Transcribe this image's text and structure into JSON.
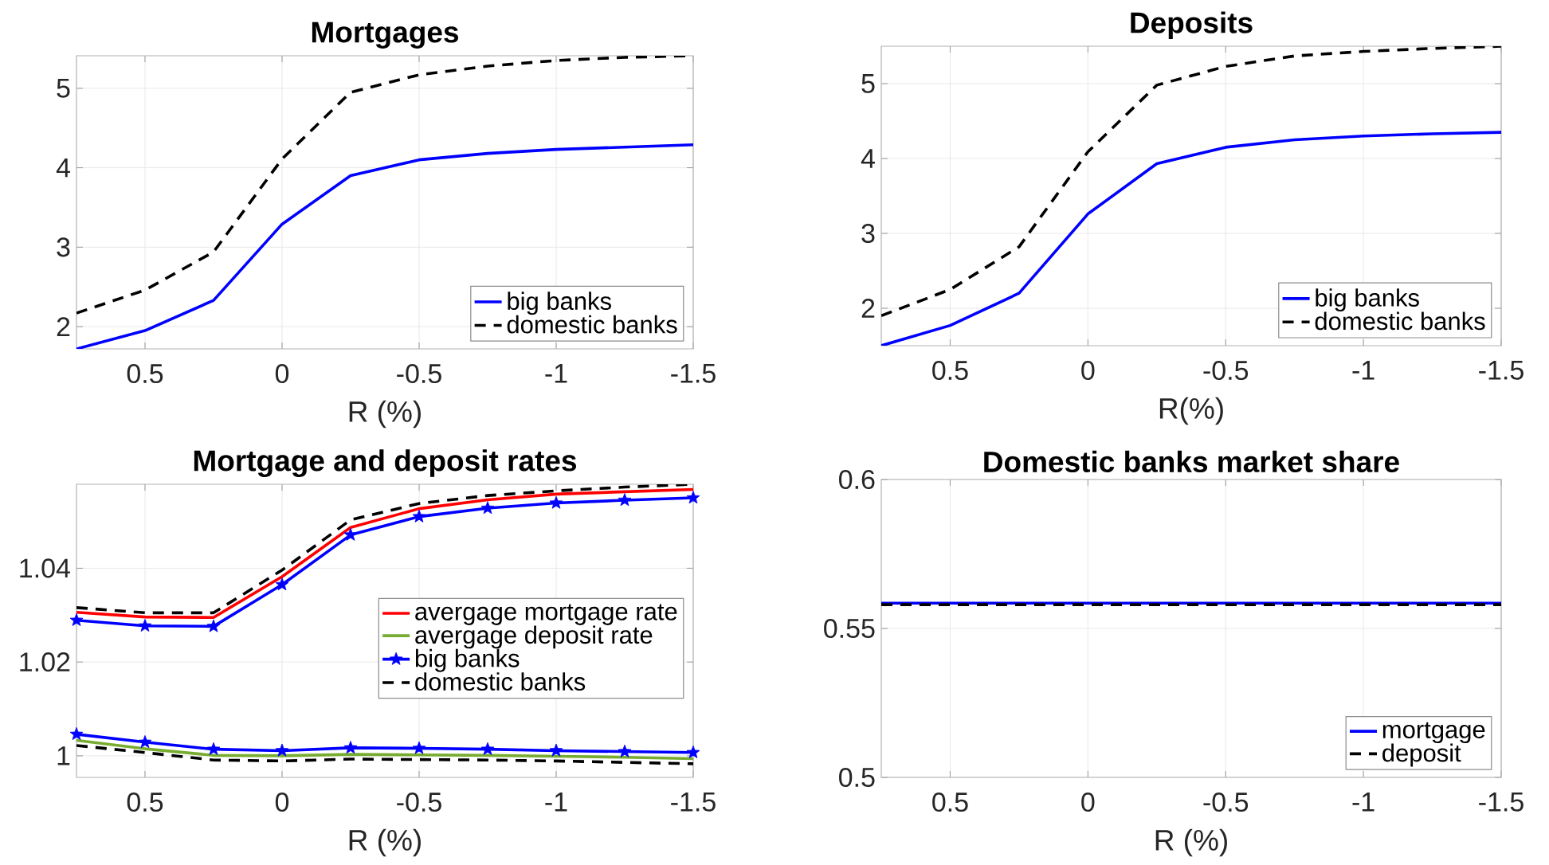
{
  "chart_data": [
    {
      "type": "line",
      "title": "Mortgages",
      "xlabel": "R (%)",
      "x": [
        0.75,
        0.5,
        0.25,
        0,
        -0.25,
        -0.5,
        -0.75,
        -1,
        -1.25,
        -1.5
      ],
      "xlim": [
        0.75,
        -1.5
      ],
      "xticks": [
        0.5,
        0,
        -0.5,
        -1,
        -1.5
      ],
      "ylim": [
        1.72,
        5.41
      ],
      "yticks": [
        2,
        3,
        4,
        5
      ],
      "grid": true,
      "legend": "bottom right",
      "series": [
        {
          "name": "big banks",
          "color": "#0000ff",
          "values": [
            1.72,
            1.95,
            2.33,
            3.29,
            3.9,
            4.1,
            4.18,
            4.23,
            4.26,
            4.29
          ]
        },
        {
          "name": "domestic banks",
          "color": "#000000",
          "line_style": "dashed",
          "values": [
            2.17,
            2.46,
            2.94,
            4.11,
            4.95,
            5.17,
            5.28,
            5.35,
            5.39,
            5.41
          ]
        }
      ]
    },
    {
      "type": "line",
      "title": "Deposits",
      "xlabel": "R(%)",
      "x": [
        0.75,
        0.5,
        0.25,
        0,
        -0.25,
        -0.5,
        -0.75,
        -1,
        -1.25,
        -1.5
      ],
      "xlim": [
        0.75,
        -1.5
      ],
      "xticks": [
        0.5,
        0,
        -0.5,
        -1,
        -1.5
      ],
      "ylim": [
        1.5,
        5.5
      ],
      "yticks": [
        2,
        3,
        4,
        5
      ],
      "grid": true,
      "legend": "bottom right",
      "series": [
        {
          "name": "big banks",
          "color": "#0000ff",
          "values": [
            1.5,
            1.77,
            2.2,
            3.26,
            3.93,
            4.15,
            4.25,
            4.3,
            4.33,
            4.35
          ]
        },
        {
          "name": "domestic banks",
          "color": "#000000",
          "line_style": "dashed",
          "values": [
            1.9,
            2.25,
            2.82,
            4.09,
            4.98,
            5.23,
            5.37,
            5.43,
            5.47,
            5.5
          ]
        }
      ]
    },
    {
      "type": "line",
      "title": "Mortgage and deposit rates",
      "xlabel": "R (%)",
      "x": [
        0.75,
        0.5,
        0.25,
        0,
        -0.25,
        -0.5,
        -0.75,
        -1,
        -1.25,
        -1.5
      ],
      "xlim": [
        0.75,
        -1.5
      ],
      "xticks": [
        0.5,
        0,
        -0.5,
        -1,
        -1.5
      ],
      "ylim": [
        0.9954,
        1.0579
      ],
      "yticks": [
        1,
        1.02,
        1.04
      ],
      "grid": true,
      "legend": "right",
      "series": [
        {
          "name": "avergage mortgage rate",
          "color": "#ff0000",
          "values": [
            1.0306,
            1.0296,
            1.0295,
            1.0382,
            1.0487,
            1.0527,
            1.0546,
            1.0558,
            1.0563,
            1.0568
          ]
        },
        {
          "name": "avergage deposit rate",
          "color": "#77ac30",
          "values": [
            1.0033,
            1.0015,
            1.0001,
            1.0,
            1.0003,
            1.0002,
            1.0001,
            0.9999,
            0.9997,
            0.9994
          ]
        },
        {
          "name": "big banks",
          "color": "#0000ff",
          "marker": "star",
          "values": [
            1.0289,
            1.0277,
            1.0276,
            1.0365,
            1.0471,
            1.051,
            1.0528,
            1.0539,
            1.0545,
            1.055
          ]
        },
        {
          "name": "domestic banks",
          "color": "#000000",
          "line_style": "dashed",
          "values": [
            1.0316,
            1.0305,
            1.0305,
            1.0396,
            1.0503,
            1.0538,
            1.0555,
            1.0565,
            1.0573,
            1.0579
          ]
        },
        {
          "color": "#0000ff",
          "marker": "star",
          "values": [
            1.0046,
            1.0029,
            1.0014,
            1.0011,
            1.0017,
            1.0016,
            1.0014,
            1.0011,
            1.0009,
            1.0007
          ]
        },
        {
          "color": "#000000",
          "line_style": "dashed",
          "values": [
            1.0022,
            1.0007,
            0.9991,
            0.9989,
            0.9993,
            0.9992,
            0.9991,
            0.9989,
            0.9986,
            0.9983
          ]
        }
      ]
    },
    {
      "type": "line",
      "title": "Domestic banks market share",
      "xlabel": "R (%)",
      "x": [
        0.75,
        0.5,
        0.25,
        0,
        -0.25,
        -0.5,
        -0.75,
        -1,
        -1.25,
        -1.5
      ],
      "xlim": [
        0.75,
        -1.5
      ],
      "xticks": [
        0.5,
        0,
        -0.5,
        -1,
        -1.5
      ],
      "ylim": [
        0.5,
        0.6
      ],
      "yticks": [
        0.5,
        0.55,
        0.6
      ],
      "grid": true,
      "legend": "bottom right",
      "series": [
        {
          "name": "mortgage",
          "color": "#0000ff",
          "values": [
            0.5585,
            0.5585,
            0.5585,
            0.5585,
            0.5585,
            0.5585,
            0.5585,
            0.5585,
            0.5585,
            0.5585
          ]
        },
        {
          "name": "deposit",
          "color": "#000000",
          "line_style": "dashed",
          "values": [
            0.558,
            0.558,
            0.558,
            0.558,
            0.558,
            0.558,
            0.558,
            0.558,
            0.558,
            0.558
          ]
        }
      ]
    }
  ]
}
